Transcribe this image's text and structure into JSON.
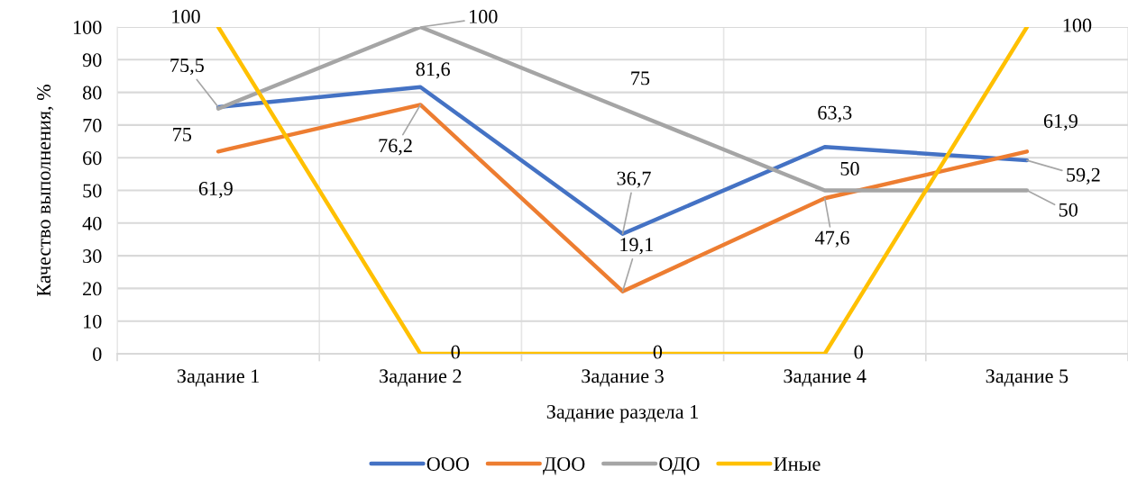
{
  "chart_data": {
    "type": "line",
    "xlabel": "Задание раздела 1",
    "ylabel": "Качество выполнения, %",
    "categories": [
      "Задание 1",
      "Задание 2",
      "Задание 3",
      "Задание 4",
      "Задание 5"
    ],
    "series": [
      {
        "name": "ООО",
        "color": "#4472c4",
        "values": [
          75.5,
          81.6,
          36.7,
          63.3,
          59.2
        ],
        "value_labels": [
          "75,5",
          "81,6",
          "36,7",
          "63,3",
          "59,2"
        ]
      },
      {
        "name": "ДОО",
        "color": "#ed7d31",
        "values": [
          61.9,
          76.2,
          19.1,
          47.6,
          61.9
        ],
        "value_labels": [
          "61,9",
          "76,2",
          "19,1",
          "47,6",
          "61,9"
        ]
      },
      {
        "name": "ОДО",
        "color": "#a5a5a5",
        "values": [
          75,
          100,
          75,
          50,
          50
        ],
        "value_labels": [
          "75",
          "100",
          "75",
          "50",
          "50"
        ]
      },
      {
        "name": "Иные",
        "color": "#ffc000",
        "values": [
          100,
          0,
          0,
          0,
          100
        ],
        "value_labels": [
          "100",
          "0",
          "0",
          "0",
          "100"
        ]
      }
    ],
    "ylim": [
      0,
      100
    ],
    "yticks": [
      0,
      10,
      20,
      30,
      40,
      50,
      60,
      70,
      80,
      90,
      100
    ],
    "grid": true,
    "legend": "bottom"
  }
}
